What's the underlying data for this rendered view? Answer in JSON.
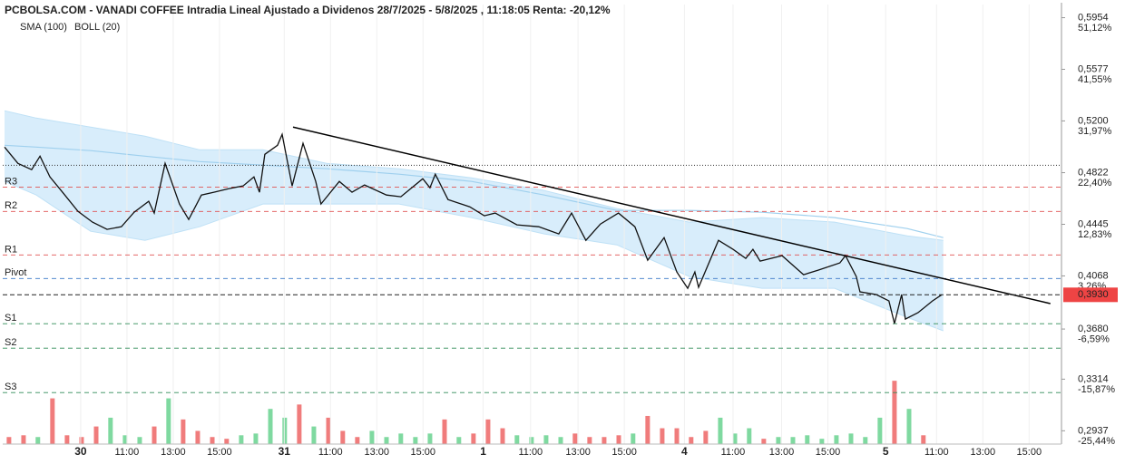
{
  "chart_data": {
    "type": "line",
    "title": "PCBOLSA.COM - VANADI COFFEE Intradia Lineal Ajustado a Dividenos 28/7/2025 - 5/8/2025 , 11:18:05 Renta: -20,12%",
    "legend": [
      {
        "name": "SMA (100)",
        "color": "#9fd0ee"
      },
      {
        "name": "BOLL (20)",
        "color": "#c8c8c8"
      }
    ],
    "xlim": [
      -3.37,
      42.4
    ],
    "xticks": [
      {
        "value": 0,
        "label": "30"
      },
      {
        "value": 2,
        "label": "11:00"
      },
      {
        "value": 4,
        "label": "13:00"
      },
      {
        "value": 6,
        "label": "15:00"
      },
      {
        "value": 8.8,
        "label": "31"
      },
      {
        "value": 10.8,
        "label": "11:00"
      },
      {
        "value": 12.8,
        "label": "13:00"
      },
      {
        "value": 14.8,
        "label": "15:00"
      },
      {
        "value": 17.4,
        "label": "1"
      },
      {
        "value": 19.45,
        "label": "11:00"
      },
      {
        "value": 21.5,
        "label": "13:00"
      },
      {
        "value": 23.5,
        "label": "15:00"
      },
      {
        "value": 26.1,
        "label": "4"
      },
      {
        "value": 28.2,
        "label": "11:00"
      },
      {
        "value": 30.3,
        "label": "13:00"
      },
      {
        "value": 32.3,
        "label": "15:00"
      },
      {
        "value": 34.8,
        "label": "5"
      },
      {
        "value": 37,
        "label": "11:00"
      },
      {
        "value": 39,
        "label": "13:00"
      },
      {
        "value": 41,
        "label": "15:00"
      }
    ],
    "day_ticks": [
      0,
      4,
      8,
      12,
      16
    ],
    "ylim": [
      0.284,
      0.605
    ],
    "yticks": [
      {
        "value": 0.5954,
        "label": "0,5954"
      },
      {
        "value": 0.5577,
        "label": "0,5577"
      },
      {
        "value": 0.52,
        "label": "0,5200"
      },
      {
        "value": 0.4822,
        "label": "0,4822"
      },
      {
        "value": 0.4445,
        "label": "0,4445"
      },
      {
        "value": 0.4068,
        "label": "0,4068"
      },
      {
        "value": 0.368,
        "label": "0,3680"
      },
      {
        "value": 0.3314,
        "label": "0,3314"
      },
      {
        "value": 0.2937,
        "label": "0,2937"
      }
    ],
    "y2lim": [
      -25.95,
      55.49
    ],
    "y2ticks": [
      {
        "value": 51.12,
        "label": "51,12%"
      },
      {
        "value": 41.55,
        "label": "41,55%"
      },
      {
        "value": 31.97,
        "label": "31,97%"
      },
      {
        "value": 22.4,
        "label": "22,40%"
      },
      {
        "value": 12.83,
        "label": "12,83%"
      },
      {
        "value": 3.26,
        "label": "3,26%"
      },
      {
        "value": -6.59,
        "label": "-6,59%"
      },
      {
        "value": -15.87,
        "label": "-15,87%"
      },
      {
        "value": -25.44,
        "label": "-25,44%"
      }
    ],
    "series": [
      {
        "color": "#111111",
        "x": [
          -3.29,
          -2.71,
          -2.12,
          -1.76,
          -1.33,
          -0.75,
          -0.12,
          0.51,
          1.14,
          1.76,
          2.31,
          2.94,
          3.18,
          3.65,
          4.27,
          4.67,
          5.22,
          5.76,
          6.39,
          7.02,
          7.49,
          7.73,
          7.96,
          8.51,
          8.71,
          9.14,
          9.61,
          10.16,
          10.39,
          11.18,
          11.73,
          12.27,
          13.22,
          13.84,
          14.79,
          15.1,
          15.33,
          15.88,
          16.82,
          17.45,
          17.92,
          18.86,
          19.8,
          20.67,
          21.22,
          21.84,
          22.47,
          23.25,
          23.96,
          24.51,
          25.22,
          25.77,
          26.24,
          26.55,
          26.71,
          27.57,
          28.2,
          28.75,
          29.06,
          29.37,
          30.32,
          31.25,
          31.88,
          32.82,
          33.06,
          33.53,
          33.69,
          34.39,
          34.94,
          35.18,
          35.49,
          35.65,
          36.2,
          36.82,
          37.22
        ],
        "values": [
          0.5009,
          0.489,
          0.4844,
          0.4943,
          0.4791,
          0.4672,
          0.454,
          0.4461,
          0.4408,
          0.4427,
          0.4533,
          0.4613,
          0.4527,
          0.489,
          0.4593,
          0.448,
          0.4659,
          0.4679,
          0.4705,
          0.4725,
          0.4791,
          0.4679,
          0.4956,
          0.5022,
          0.5102,
          0.4725,
          0.5036,
          0.4758,
          0.4593,
          0.4758,
          0.4679,
          0.4732,
          0.4659,
          0.4646,
          0.4778,
          0.4712,
          0.4811,
          0.4626,
          0.4573,
          0.4507,
          0.4527,
          0.4441,
          0.4427,
          0.4375,
          0.4527,
          0.4328,
          0.4447,
          0.4527,
          0.4427,
          0.4183,
          0.4348,
          0.4097,
          0.3978,
          0.4097,
          0.3985,
          0.4328,
          0.4262,
          0.4196,
          0.4262,
          0.4176,
          0.4216,
          0.4077,
          0.411,
          0.4163,
          0.4216,
          0.4064,
          0.3952,
          0.3932,
          0.3885,
          0.372,
          0.3932,
          0.3753,
          0.38,
          0.3885,
          0.393
        ]
      }
    ],
    "band": {
      "x": [
        -3.29,
        -1.92,
        0.43,
        2.78,
        5.14,
        7.88,
        10.63,
        13.76,
        16.9,
        20.04,
        23.18,
        26.31,
        29.45,
        32.59,
        35.73,
        37.29
      ],
      "upper": [
        0.5274,
        0.5221,
        0.5155,
        0.5088,
        0.4989,
        0.4989,
        0.489,
        0.4851,
        0.4784,
        0.4692,
        0.456,
        0.4461,
        0.4494,
        0.4461,
        0.4361,
        0.4328
      ],
      "lower": [
        0.4758,
        0.4659,
        0.4394,
        0.4328,
        0.4427,
        0.4593,
        0.4593,
        0.4593,
        0.4494,
        0.4375,
        0.4295,
        0.4064,
        0.3978,
        0.3978,
        0.3766,
        0.3667
      ],
      "sma": [
        0.5022,
        0.5009,
        0.4983,
        0.4943,
        0.4903,
        0.4877,
        0.4851,
        0.4811,
        0.4758,
        0.4659,
        0.4546,
        0.4546,
        0.4533,
        0.4494,
        0.4414,
        0.4348
      ],
      "fill": "#d8edfb",
      "edge": "#bfe1f6",
      "sma_color": "#9fd0ee"
    },
    "trendline": {
      "x": [
        9.18,
        41.92
      ],
      "values": [
        0.5155,
        0.3866
      ],
      "color": "#000000"
    },
    "reference_line": 0.4876,
    "levels": [
      {
        "name": "R3",
        "value": 0.4717,
        "color": "#e05252"
      },
      {
        "name": "R2",
        "value": 0.4539,
        "color": "#e05252"
      },
      {
        "name": "R1",
        "value": 0.4221,
        "color": "#e05252"
      },
      {
        "name": "Pivot",
        "value": 0.4049,
        "color": "#3a78c8"
      },
      {
        "name": "S1",
        "value": 0.3719,
        "color": "#2e8b57"
      },
      {
        "name": "S2",
        "value": 0.354,
        "color": "#2e8b57"
      },
      {
        "name": "S3",
        "value": 0.3216,
        "color": "#2e8b57"
      }
    ],
    "last": {
      "value": 0.393,
      "label": "0,3930",
      "color": "#ee4444"
    },
    "volume": {
      "ylim": [
        0,
        500
      ],
      "x": [
        -3.1,
        -2.47,
        -1.85,
        -1.22,
        -0.59,
        0.04,
        0.67,
        1.29,
        1.92,
        2.55,
        3.18,
        3.8,
        4.43,
        5.06,
        5.69,
        6.31,
        6.94,
        7.57,
        8.2,
        8.82,
        9.45,
        10.08,
        10.71,
        11.33,
        11.96,
        12.59,
        13.22,
        13.84,
        14.47,
        15.1,
        15.73,
        16.35,
        16.98,
        17.61,
        18.24,
        18.86,
        19.49,
        20.12,
        20.75,
        21.37,
        22,
        22.63,
        23.26,
        23.88,
        24.51,
        25.14,
        25.77,
        26.39,
        27.02,
        27.65,
        28.28,
        28.9,
        29.53,
        30.16,
        30.79,
        31.41,
        32.04,
        32.67,
        33.3,
        33.92,
        34.55,
        35.18,
        35.81,
        36.43
      ],
      "values": [
        8,
        10,
        8,
        52,
        10,
        8,
        20,
        30,
        10,
        8,
        20,
        52,
        28,
        15,
        8,
        6,
        10,
        12,
        40,
        30,
        45,
        20,
        30,
        15,
        8,
        15,
        8,
        12,
        8,
        12,
        28,
        8,
        12,
        28,
        18,
        10,
        8,
        10,
        8,
        12,
        8,
        8,
        10,
        12,
        32,
        18,
        18,
        8,
        15,
        30,
        12,
        18,
        6,
        8,
        8,
        10,
        6,
        10,
        12,
        8,
        30,
        72,
        40,
        10
      ],
      "colors": [
        "#f07c7c",
        "#f07c7c",
        "#7fd9a0",
        "#f07c7c",
        "#f07c7c",
        "#f07c7c",
        "#f07c7c",
        "#7fd9a0",
        "#7fd9a0",
        "#7fd9a0",
        "#f07c7c",
        "#7fd9a0",
        "#f07c7c",
        "#f07c7c",
        "#f07c7c",
        "#f07c7c",
        "#7fd9a0",
        "#7fd9a0",
        "#7fd9a0",
        "#7fd9a0",
        "#f07c7c",
        "#7fd9a0",
        "#f07c7c",
        "#f07c7c",
        "#f07c7c",
        "#7fd9a0",
        "#7fd9a0",
        "#7fd9a0",
        "#7fd9a0",
        "#7fd9a0",
        "#f07c7c",
        "#7fd9a0",
        "#f07c7c",
        "#f07c7c",
        "#f07c7c",
        "#7fd9a0",
        "#7fd9a0",
        "#7fd9a0",
        "#7fd9a0",
        "#f07c7c",
        "#f07c7c",
        "#f07c7c",
        "#f07c7c",
        "#7fd9a0",
        "#f07c7c",
        "#f07c7c",
        "#f07c7c",
        "#f07c7c",
        "#f07c7c",
        "#7fd9a0",
        "#7fd9a0",
        "#7fd9a0",
        "#f07c7c",
        "#7fd9a0",
        "#7fd9a0",
        "#7fd9a0",
        "#7fd9a0",
        "#7fd9a0",
        "#7fd9a0",
        "#7fd9a0",
        "#7fd9a0",
        "#f07c7c",
        "#7fd9a0",
        "#f07c7c"
      ]
    }
  }
}
